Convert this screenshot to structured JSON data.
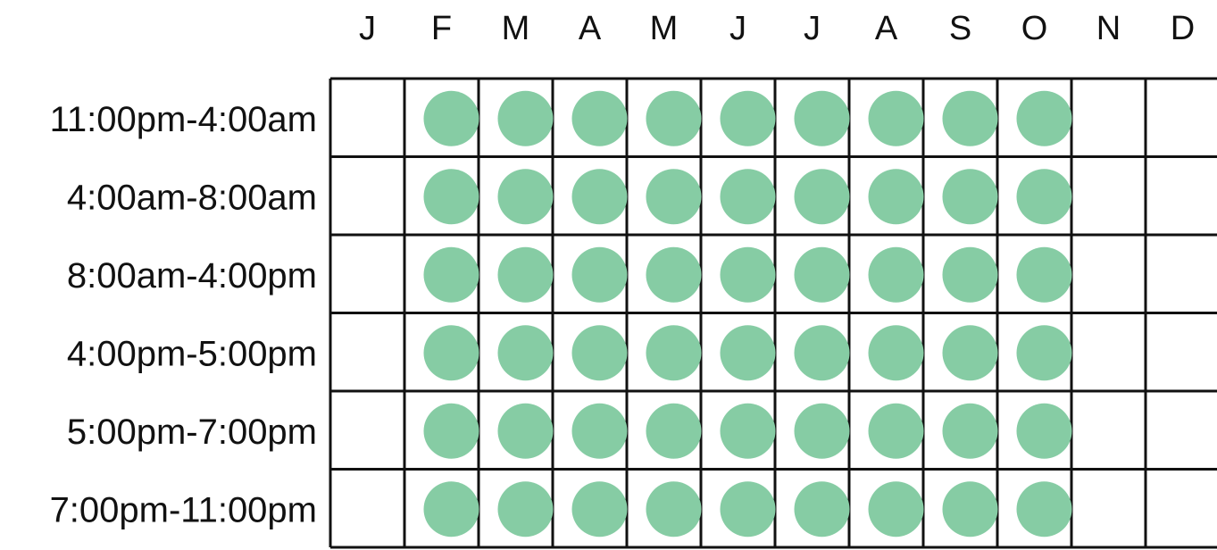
{
  "chart_data": {
    "type": "heatmap",
    "title": "",
    "columns": [
      "J",
      "F",
      "M",
      "A",
      "M",
      "J",
      "J",
      "A",
      "S",
      "O",
      "N",
      "D"
    ],
    "rows": [
      "11:00pm-4:00am",
      "4:00am-8:00am",
      "8:00am-4:00pm",
      "4:00pm-5:00pm",
      "5:00pm-7:00pm",
      "7:00pm-11:00pm"
    ],
    "marked": [
      [
        0,
        1,
        1,
        1,
        1,
        1,
        1,
        1,
        1,
        1,
        0,
        0
      ],
      [
        0,
        1,
        1,
        1,
        1,
        1,
        1,
        1,
        1,
        1,
        0,
        0
      ],
      [
        0,
        1,
        1,
        1,
        1,
        1,
        1,
        1,
        1,
        1,
        0,
        0
      ],
      [
        0,
        1,
        1,
        1,
        1,
        1,
        1,
        1,
        1,
        1,
        0,
        0
      ],
      [
        0,
        1,
        1,
        1,
        1,
        1,
        1,
        1,
        1,
        1,
        0,
        0
      ],
      [
        0,
        1,
        1,
        1,
        1,
        1,
        1,
        1,
        1,
        1,
        0,
        0
      ]
    ],
    "marker_color": "#86cca4",
    "grid_color": "#111111"
  }
}
